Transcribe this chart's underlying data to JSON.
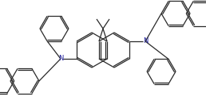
{
  "bg_color": "#ffffff",
  "bond_color": "#2a2a2a",
  "n_color": "#1a1a99",
  "line_width": 0.9,
  "figsize": [
    2.58,
    1.41
  ],
  "dpi": 100,
  "xlim": [
    0,
    258
  ],
  "ylim": [
    0,
    141
  ]
}
